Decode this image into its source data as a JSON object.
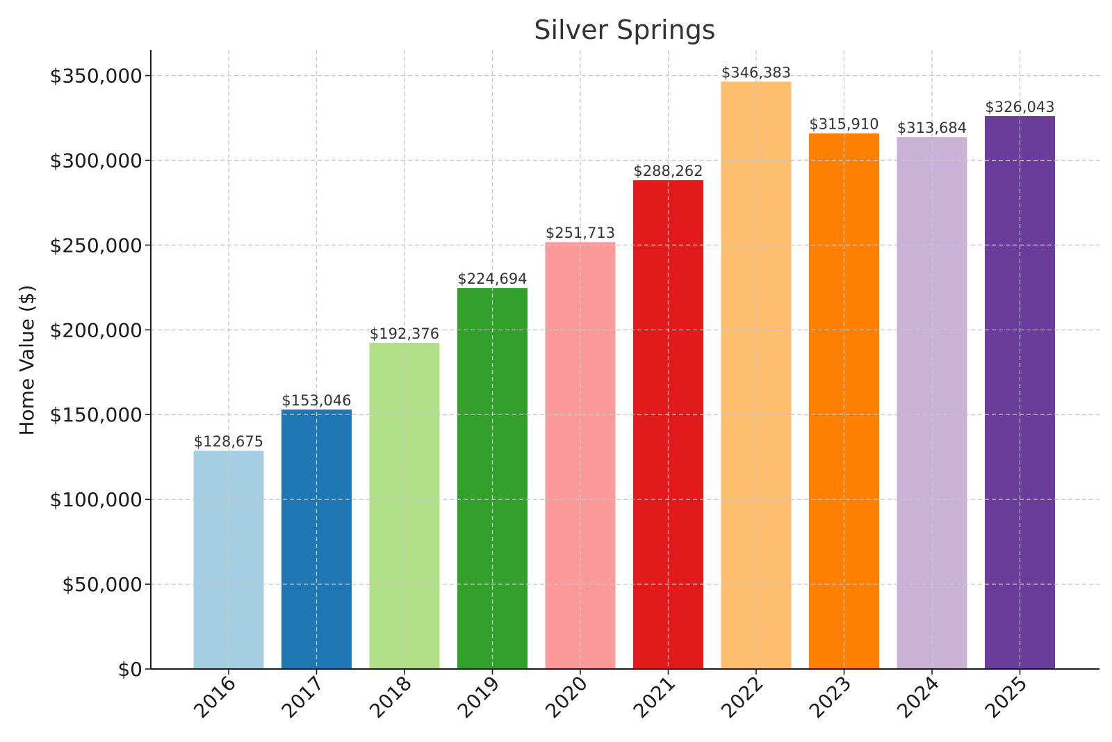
{
  "chart_data": {
    "type": "bar",
    "title": "Silver Springs",
    "xlabel": "",
    "ylabel": "Home Value ($)",
    "ylim": [
      0,
      365000
    ],
    "yticks": [
      0,
      50000,
      100000,
      150000,
      200000,
      250000,
      300000,
      350000
    ],
    "ytick_labels": [
      "$0",
      "$50,000",
      "$100,000",
      "$150,000",
      "$200,000",
      "$250,000",
      "$300,000",
      "$350,000"
    ],
    "categories": [
      "2016",
      "2017",
      "2018",
      "2019",
      "2020",
      "2021",
      "2022",
      "2023",
      "2024",
      "2025"
    ],
    "values": [
      128675,
      153046,
      192376,
      224694,
      251713,
      288262,
      346383,
      315910,
      313684,
      326043
    ],
    "value_labels": [
      "$128,675",
      "$153,046",
      "$192,376",
      "$224,694",
      "$251,713",
      "$288,262",
      "$346,383",
      "$315,910",
      "$313,684",
      "$326,043"
    ],
    "colors": [
      "#a6cee3",
      "#1f78b4",
      "#b2df8a",
      "#33a02c",
      "#fb9a99",
      "#e31a1c",
      "#fdbf6f",
      "#ff7f00",
      "#cab2d6",
      "#6a3d9a"
    ],
    "grid": true,
    "legend": "none"
  }
}
